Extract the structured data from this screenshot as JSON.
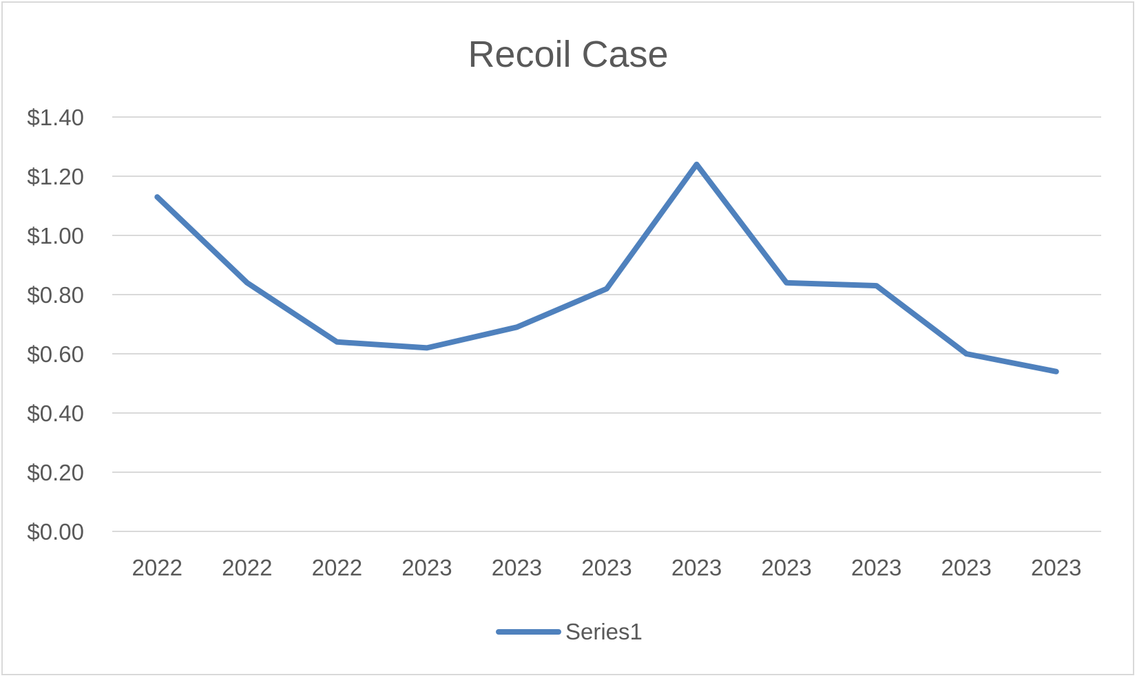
{
  "chart_data": {
    "type": "line",
    "title": "Recoil Case",
    "categories": [
      "2022",
      "2022",
      "2022",
      "2023",
      "2023",
      "2023",
      "2023",
      "2023",
      "2023",
      "2023",
      "2023"
    ],
    "series": [
      {
        "name": "Series1",
        "color": "#4f81bd",
        "values": [
          1.13,
          0.84,
          0.64,
          0.62,
          0.69,
          0.82,
          1.24,
          0.84,
          0.83,
          0.6,
          0.54
        ]
      }
    ],
    "ylim": [
      0,
      1.4
    ],
    "y_ticks": [
      "$0.00",
      "$0.20",
      "$0.40",
      "$0.60",
      "$0.80",
      "$1.00",
      "$1.20",
      "$1.40"
    ],
    "grid": true,
    "legend_position": "bottom"
  }
}
